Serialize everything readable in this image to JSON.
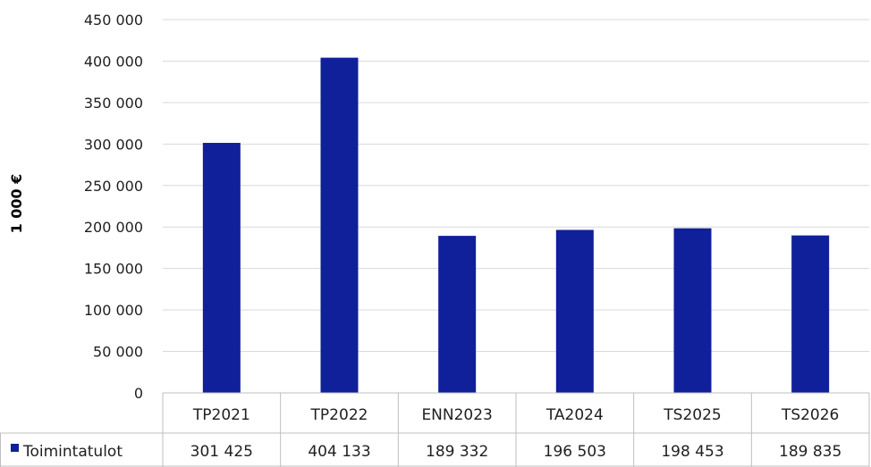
{
  "chart_data": {
    "type": "bar",
    "ylabel": "1 000 €",
    "ylim": [
      0,
      450000
    ],
    "yticks": [
      0,
      50000,
      100000,
      150000,
      200000,
      250000,
      300000,
      350000,
      400000,
      450000
    ],
    "ytick_labels": [
      "0",
      "50 000",
      "100 000",
      "150 000",
      "200 000",
      "250 000",
      "300 000",
      "350 000",
      "400 000",
      "450 000"
    ],
    "grid": true,
    "categories": [
      "TP2021",
      "TP2022",
      "ENN2023",
      "TA2024",
      "TS2025",
      "TS2026"
    ],
    "series": [
      {
        "name": "Toimintatulot",
        "values": [
          301425,
          404133,
          189332,
          196503,
          198453,
          189835
        ],
        "value_labels": [
          "301 425",
          "404 133",
          "189 332",
          "196 503",
          "198 453",
          "189 835"
        ],
        "color": "#10209a"
      }
    ],
    "legend_placement": "data-table-left"
  }
}
